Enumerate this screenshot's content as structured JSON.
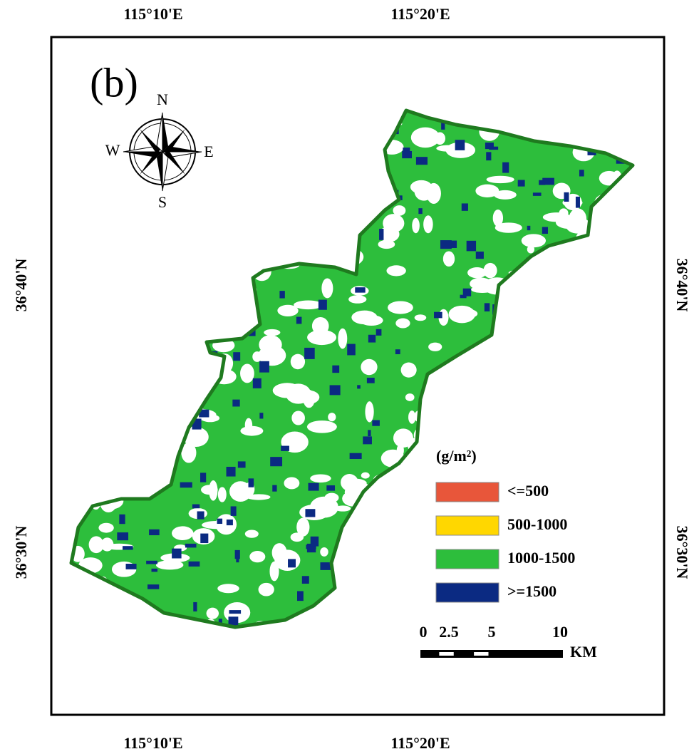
{
  "header": {
    "panel_label": "(b)"
  },
  "axes": {
    "top": [
      "115°10'E",
      "115°20'E"
    ],
    "bottom": [
      "115°10'E",
      "115°20'E"
    ],
    "left": [
      "36°40'N",
      "36°30'N"
    ],
    "right": [
      "36°40'N",
      "36°30'N"
    ]
  },
  "compass": {
    "N": "N",
    "E": "E",
    "S": "S",
    "W": "W"
  },
  "legend": {
    "title": "(g/m²)",
    "items": [
      {
        "label": "<=500",
        "color": "#e8563a"
      },
      {
        "label": "500-1000",
        "color": "#ffd700"
      },
      {
        "label": "1000-1500",
        "color": "#2dbe3c"
      },
      {
        "label": ">=1500",
        "color": "#0b2a82"
      }
    ]
  },
  "scale_bar": {
    "ticks": [
      "0",
      "2.5",
      "5",
      "10"
    ],
    "unit": "KM"
  }
}
